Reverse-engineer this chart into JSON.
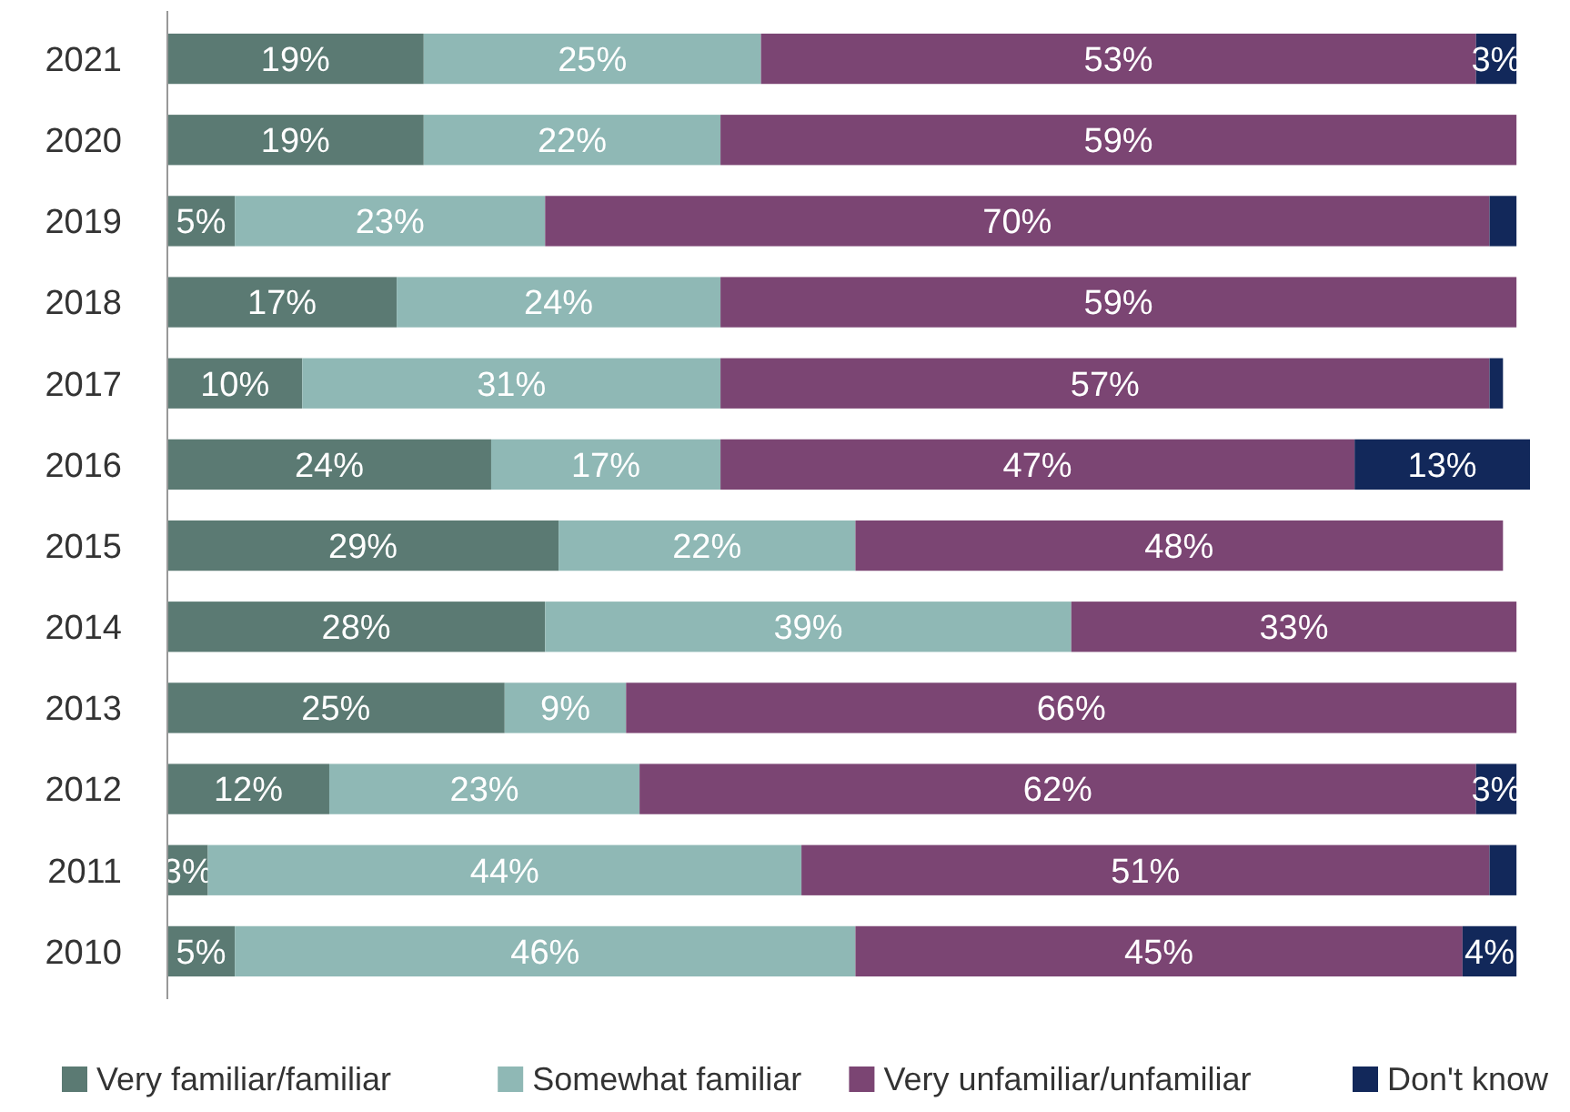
{
  "chart_data": {
    "type": "bar",
    "orientation": "horizontal",
    "stacked": true,
    "categories": [
      "2021",
      "2020",
      "2019",
      "2018",
      "2017",
      "2016",
      "2015",
      "2014",
      "2013",
      "2012",
      "2011",
      "2010"
    ],
    "xlim": [
      0,
      101
    ],
    "legend": "bottom",
    "series": [
      {
        "name": "Very familiar/familiar",
        "color": "#5b7a73",
        "values": [
          19,
          19,
          5,
          17,
          10,
          24,
          29,
          28,
          25,
          12,
          3,
          5
        ],
        "value_labels": [
          "19%",
          "19%",
          "5%",
          "17%",
          "10%",
          "24%",
          "29%",
          "28%",
          "25%",
          "12%",
          "3%",
          "5%"
        ]
      },
      {
        "name": "Somewhat familiar",
        "color": "#8fb8b5",
        "values": [
          25,
          22,
          23,
          24,
          31,
          17,
          22,
          39,
          9,
          23,
          44,
          46
        ],
        "value_labels": [
          "25%",
          "22%",
          "23%",
          "24%",
          "31%",
          "17%",
          "22%",
          "39%",
          "9%",
          "23%",
          "44%",
          "46%"
        ]
      },
      {
        "name": "Very unfamiliar/unfamiliar",
        "color": "#7b4573",
        "values": [
          53,
          59,
          70,
          59,
          57,
          47,
          48,
          33,
          66,
          62,
          51,
          45
        ],
        "value_labels": [
          "53%",
          "59%",
          "70%",
          "59%",
          "57%",
          "47%",
          "48%",
          "33%",
          "66%",
          "62%",
          "51%",
          "45%"
        ]
      },
      {
        "name": "Don't know",
        "color": "#12285a",
        "values": [
          3,
          0,
          2,
          0,
          1,
          13,
          0,
          0,
          0,
          3,
          2,
          4
        ],
        "value_labels": [
          "3%",
          null,
          null,
          null,
          null,
          "13%",
          null,
          null,
          null,
          "3%",
          null,
          "4%"
        ]
      }
    ]
  }
}
